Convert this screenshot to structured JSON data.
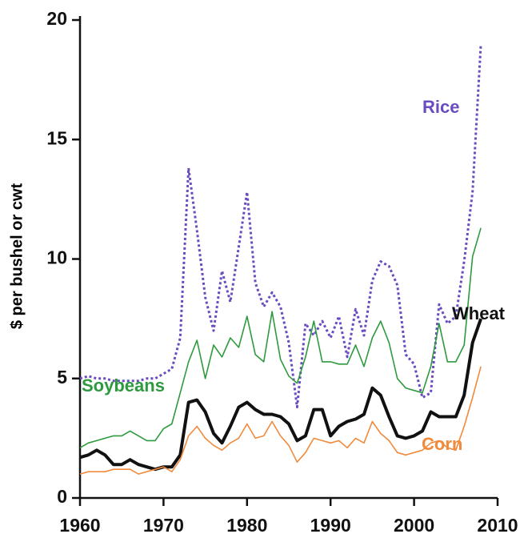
{
  "chart_data": {
    "type": "line",
    "ylabel": "$ per bushel or cwt",
    "x": [
      1960,
      1961,
      1962,
      1963,
      1964,
      1965,
      1966,
      1967,
      1968,
      1969,
      1970,
      1971,
      1972,
      1973,
      1974,
      1975,
      1976,
      1977,
      1978,
      1979,
      1980,
      1981,
      1982,
      1983,
      1984,
      1985,
      1986,
      1987,
      1988,
      1989,
      1990,
      1991,
      1992,
      1993,
      1994,
      1995,
      1996,
      1997,
      1998,
      1999,
      2000,
      2001,
      2002,
      2003,
      2004,
      2005,
      2006,
      2007,
      2008
    ],
    "series": [
      {
        "name": "Rice",
        "color": "#6a4cc0",
        "dashed": true,
        "values": [
          5.0,
          5.1,
          5.0,
          5.0,
          4.9,
          4.9,
          4.9,
          4.9,
          5.0,
          5.0,
          5.2,
          5.4,
          6.7,
          13.8,
          11.2,
          8.4,
          7.0,
          9.5,
          8.2,
          10.5,
          12.8,
          9.0,
          8.0,
          8.6,
          8.0,
          6.5,
          3.8,
          7.3,
          6.8,
          7.4,
          6.7,
          7.6,
          5.9,
          7.9,
          6.8,
          9.1,
          9.9,
          9.7,
          8.9,
          6.0,
          5.6,
          4.2,
          4.4,
          8.1,
          7.3,
          7.6,
          9.9,
          12.8,
          19.0
        ]
      },
      {
        "name": "Soybeans",
        "color": "#2e9a3e",
        "dashed": false,
        "values": [
          2.1,
          2.3,
          2.4,
          2.5,
          2.6,
          2.6,
          2.8,
          2.6,
          2.4,
          2.4,
          2.9,
          3.1,
          4.4,
          5.7,
          6.6,
          5.0,
          6.4,
          5.9,
          6.7,
          6.3,
          7.6,
          6.0,
          5.7,
          7.8,
          5.8,
          5.1,
          4.8,
          5.9,
          7.4,
          5.7,
          5.7,
          5.6,
          5.6,
          6.4,
          5.5,
          6.7,
          7.4,
          6.5,
          5.0,
          4.6,
          4.5,
          4.4,
          5.5,
          7.3,
          5.7,
          5.7,
          6.4,
          10.1,
          11.3
        ]
      },
      {
        "name": "Wheat",
        "color": "#111111",
        "dashed": false,
        "values": [
          1.7,
          1.8,
          2.0,
          1.8,
          1.4,
          1.4,
          1.6,
          1.4,
          1.3,
          1.2,
          1.3,
          1.3,
          1.8,
          4.0,
          4.1,
          3.6,
          2.7,
          2.3,
          3.0,
          3.8,
          4.0,
          3.7,
          3.5,
          3.5,
          3.4,
          3.1,
          2.4,
          2.6,
          3.7,
          3.7,
          2.6,
          3.0,
          3.2,
          3.3,
          3.5,
          4.6,
          4.3,
          3.4,
          2.6,
          2.5,
          2.6,
          2.8,
          3.6,
          3.4,
          3.4,
          3.4,
          4.3,
          6.5,
          7.5
        ]
      },
      {
        "name": "Corn",
        "color": "#f08a3c",
        "dashed": false,
        "values": [
          1.0,
          1.1,
          1.1,
          1.1,
          1.2,
          1.2,
          1.2,
          1.0,
          1.1,
          1.2,
          1.3,
          1.1,
          1.6,
          2.6,
          3.0,
          2.5,
          2.2,
          2.0,
          2.3,
          2.5,
          3.1,
          2.5,
          2.6,
          3.2,
          2.6,
          2.2,
          1.5,
          1.9,
          2.5,
          2.4,
          2.3,
          2.4,
          2.1,
          2.5,
          2.3,
          3.2,
          2.7,
          2.4,
          1.9,
          1.8,
          1.9,
          2.0,
          2.3,
          2.4,
          2.1,
          2.0,
          3.0,
          4.2,
          5.5
        ]
      }
    ],
    "xlim": [
      1960,
      2010
    ],
    "xticks": [
      1960,
      1970,
      1980,
      1990,
      2000,
      2010
    ],
    "ylim": [
      0,
      20
    ],
    "yticks": [
      0,
      5,
      10,
      15,
      20
    ]
  }
}
